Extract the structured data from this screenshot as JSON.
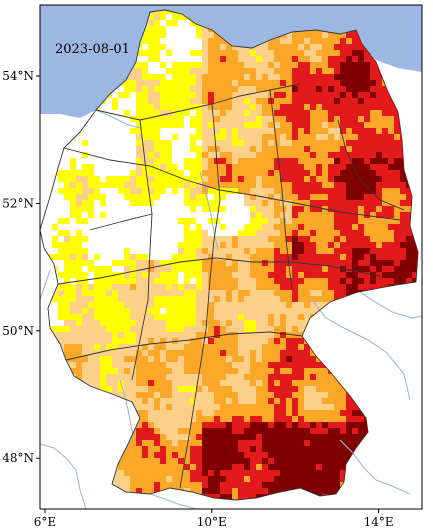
{
  "map": {
    "date_label": "2023-08-01",
    "lat_ticks": [
      {
        "label": "54°N",
        "value": 54
      },
      {
        "label": "52°N",
        "value": 52
      },
      {
        "label": "50°N",
        "value": 50
      },
      {
        "label": "48°N",
        "value": 48
      }
    ],
    "lon_ticks": [
      {
        "label": "6°E",
        "value": 6
      },
      {
        "label": "10°E",
        "value": 10
      },
      {
        "label": "14°E",
        "value": 14
      }
    ],
    "colors": {
      "sea": "#9db7e3",
      "land_outside": "#ffffff",
      "border": "#333333",
      "river": "#9fb7d6",
      "class_white": "#ffffff",
      "class_yellow": "#ffff00",
      "class_light_orange": "#fdd08a",
      "class_orange": "#fba828",
      "class_red": "#e31a1c",
      "class_dark_red": "#800000"
    }
  }
}
